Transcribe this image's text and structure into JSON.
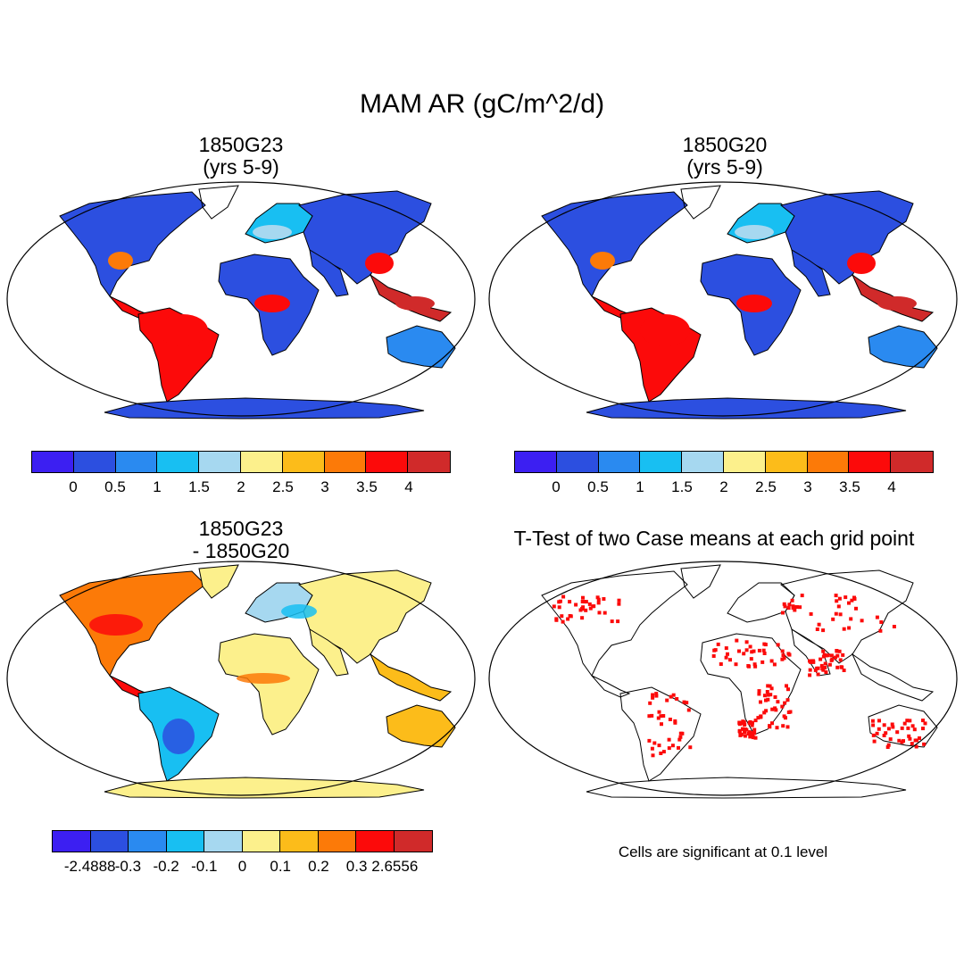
{
  "title": "MAM AR (gC/m^2/d)",
  "panels": [
    {
      "title_line1": "1850G23",
      "title_line2": "(yrs 5-9)"
    },
    {
      "title_line1": "1850G20",
      "title_line2": "(yrs 5-9)"
    },
    {
      "title_line1": "1850G23",
      "title_line2": "- 1850G20"
    },
    {
      "title_line1": "T-Test of two Case means at each grid point"
    }
  ],
  "colorbar_abs": {
    "colors": [
      "#3c1ff2",
      "#2c4fe0",
      "#2a8af0",
      "#18bff2",
      "#a6d8f0",
      "#fcf08c",
      "#fcbc1a",
      "#fc7a08",
      "#fc0a0a",
      "#d02a2a"
    ],
    "labels": [
      "0",
      "0.5",
      "1",
      "1.5",
      "2",
      "2.5",
      "3",
      "3.5",
      "4"
    ]
  },
  "colorbar_diff": {
    "colors": [
      "#3c1ff2",
      "#2c4fe0",
      "#2a8af0",
      "#18bff2",
      "#a6d8f0",
      "#fcf08c",
      "#fcbc1a",
      "#fc7a08",
      "#fc0a0a",
      "#d02a2a"
    ],
    "labels": [
      "-2.4888",
      "-0.3",
      "-0.2",
      "-0.1",
      "0",
      "0.1",
      "0.2",
      "0.3",
      "2.6556"
    ]
  },
  "significance_note": "Cells are significant at 0.1 level",
  "significance_color": "#fc0a0a"
}
